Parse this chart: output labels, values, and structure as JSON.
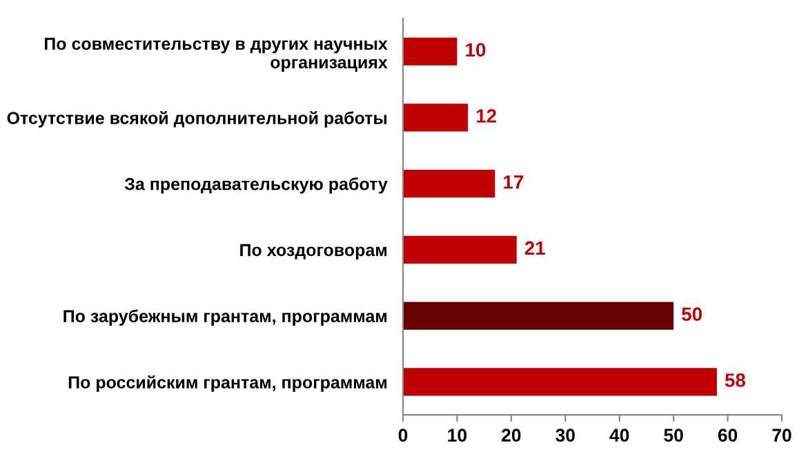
{
  "chart_data": {
    "type": "bar",
    "orientation": "horizontal",
    "categories": [
      "По совместительству в других научных\nорганизациях",
      "Отсутствие всякой дополнительной работы",
      "За преподавательскую работу",
      "По хоздоговорам",
      "По зарубежным грантам, программам",
      "По российским грантам, программам"
    ],
    "values": [
      10,
      12,
      17,
      21,
      50,
      58
    ],
    "colors": [
      "#c00000",
      "#c00000",
      "#c00000",
      "#c00000",
      "#660000",
      "#c00000"
    ],
    "xlim": [
      0,
      70
    ],
    "xticks": [
      0,
      10,
      20,
      30,
      40,
      50,
      60,
      70
    ],
    "data_labels": true,
    "grid": false
  }
}
